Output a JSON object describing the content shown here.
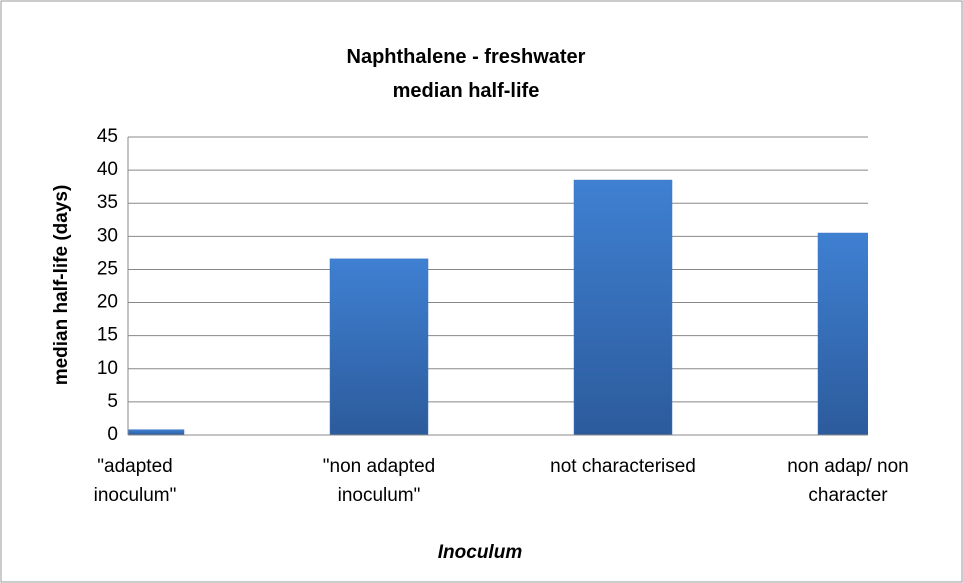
{
  "chart_data": {
    "type": "bar",
    "title": "Naphthalene - freshwater median half-life",
    "x_label": "Inoculum",
    "y_label": "median half-life (days)",
    "categories": [
      "\"adapted inoculum\"",
      "\"non adapted inoculum\"",
      "not characterised",
      "non adap/ non character"
    ],
    "values": [
      0.8,
      26.6,
      38.5,
      30.5
    ],
    "color": "#3a75c4",
    "ylim": [
      0,
      45
    ],
    "yticks": [
      0,
      5,
      10,
      15,
      20,
      25,
      30,
      35,
      40,
      45
    ],
    "grid": true
  }
}
